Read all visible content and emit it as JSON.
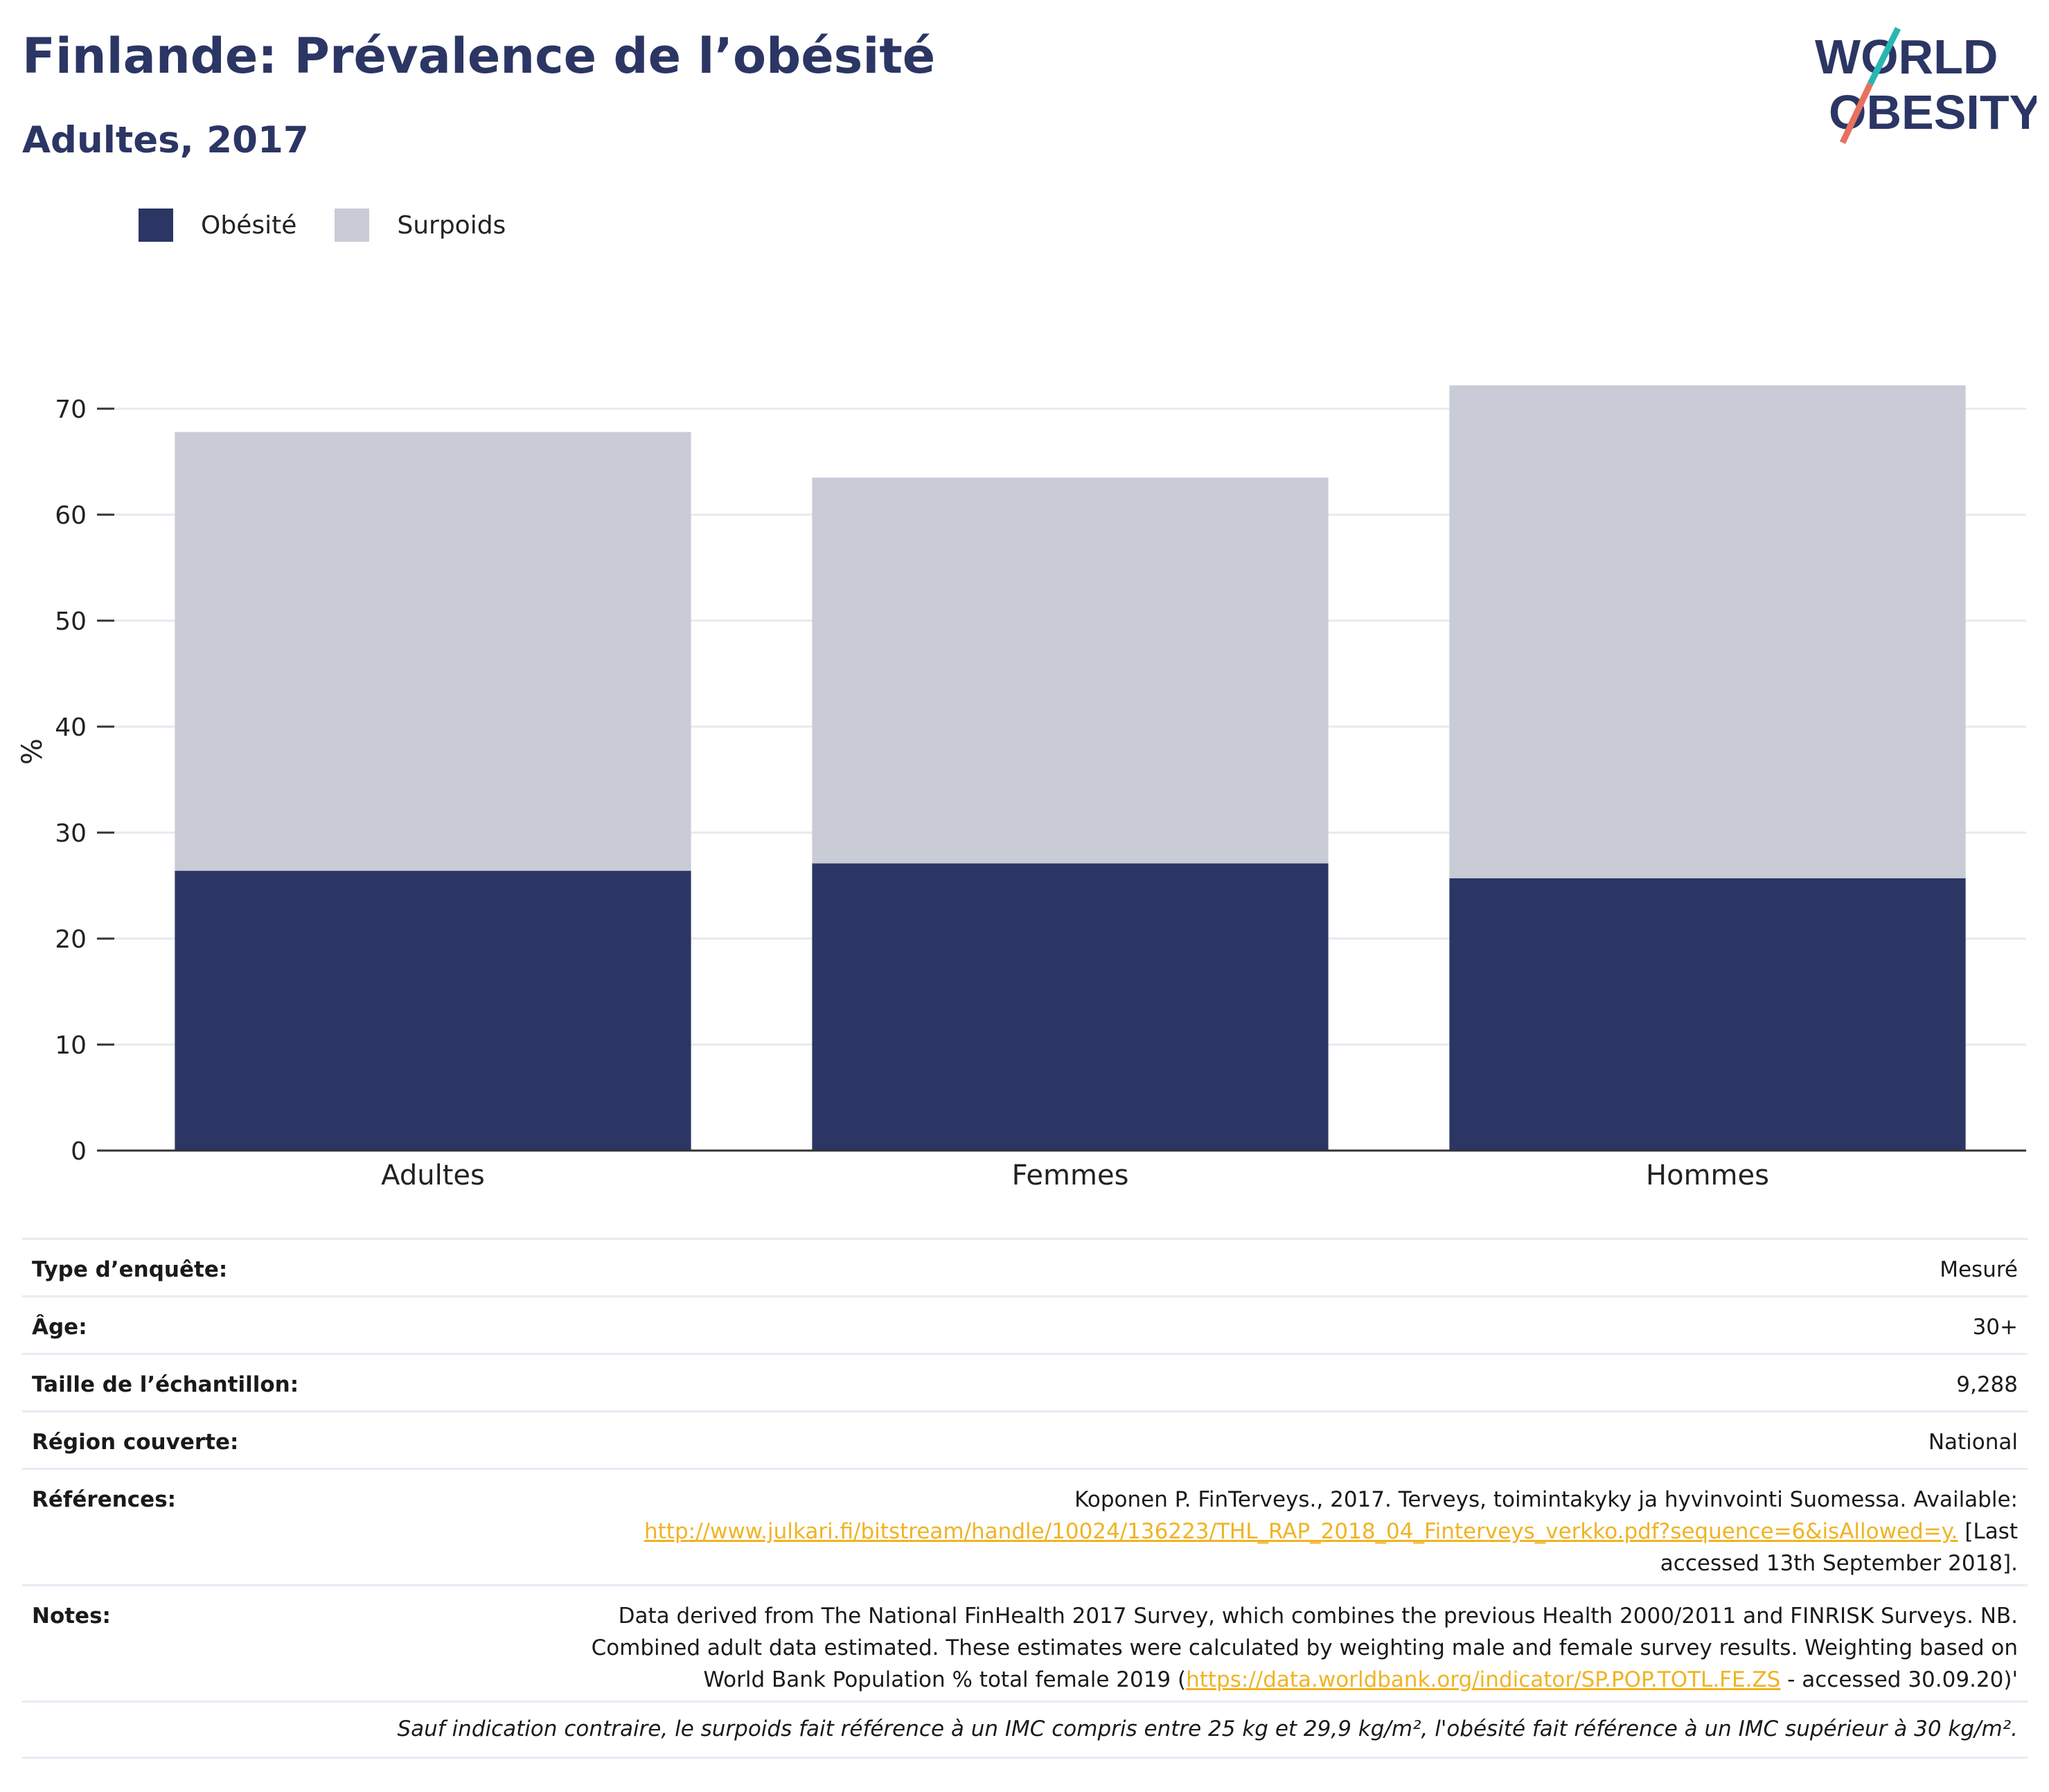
{
  "header": {
    "title": "Finlande: Prévalence de l’obésité",
    "subtitle": "Adultes, 2017"
  },
  "logo": {
    "line1": "WORLD",
    "line2": "OBESITY"
  },
  "colors": {
    "obesity": "#2b3664",
    "overweight": "#c9cbd6",
    "title": "#2b3664",
    "link": "#f0b323",
    "logo_teal": "#2bb5b1",
    "logo_coral": "#e8705f"
  },
  "chart_data": {
    "type": "bar",
    "stacked": true,
    "categories": [
      "Adultes",
      "Femmes",
      "Hommes"
    ],
    "series": [
      {
        "name": "Obésité",
        "values": [
          26.4,
          27.1,
          25.7
        ],
        "color": "#2b3664"
      },
      {
        "name": "Surpoids",
        "values": [
          41.4,
          36.4,
          46.5
        ],
        "color": "#c9cbd6"
      }
    ],
    "ylabel": "%",
    "ylim": [
      0,
      75
    ],
    "yticks": [
      0,
      10,
      20,
      30,
      40,
      50,
      60,
      70
    ],
    "grid": true,
    "legend": "top-left"
  },
  "info": {
    "rows": [
      {
        "label": "Type d’enquête:",
        "value": "Mesuré"
      },
      {
        "label": "Âge:",
        "value": "30+"
      },
      {
        "label": "Taille de l’échantillon:",
        "value": "9,288"
      },
      {
        "label": "Région couverte:",
        "value": "National"
      }
    ],
    "references": {
      "label": "Références:",
      "text1": "Koponen P. FinTerveys., 2017. Terveys, toimintakyky ja hyvinvointi Suomessa. Available:",
      "link": "http://www.julkari.fi/bitstream/handle/10024/136223/THL_RAP_2018_04_Finterveys_verkko.pdf?sequence=6&isAllowed=y.",
      "text2": " [Last",
      "text3": "accessed 13th September 2018]."
    },
    "notes": {
      "label": "Notes:",
      "line1": "Data derived from The National FinHealth 2017 Survey, which combines the previous Health 2000/2011 and FINRISK Surveys. NB.",
      "line2": "Combined adult data estimated. These estimates were calculated by weighting male and female survey results. Weighting based on",
      "line3a": "World Bank Population % total female 2019 (",
      "link": "https://data.worldbank.org/indicator/SP.POP.TOTL.FE.ZS",
      "line3b": " - accessed 30.09.20)'"
    },
    "footnote": "Sauf indication contraire, le surpoids fait référence à un IMC compris entre 25 kg et 29,9 kg/m², l'obésité fait référence à un IMC supérieur à 30 kg/m²."
  }
}
